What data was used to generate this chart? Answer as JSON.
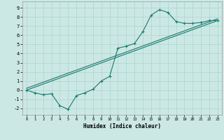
{
  "xlabel": "Humidex (Indice chaleur)",
  "bg_color": "#cce8e4",
  "grid_color": "#aad4cc",
  "line_color": "#1a7a6e",
  "xlim": [
    -0.5,
    23.5
  ],
  "ylim": [
    -2.7,
    9.7
  ],
  "xticks": [
    0,
    1,
    2,
    3,
    4,
    5,
    6,
    7,
    8,
    9,
    10,
    11,
    12,
    13,
    14,
    15,
    16,
    17,
    18,
    19,
    20,
    21,
    22,
    23
  ],
  "yticks": [
    -2,
    -1,
    0,
    1,
    2,
    3,
    4,
    5,
    6,
    7,
    8,
    9
  ],
  "series": [
    [
      0.0,
      0.0
    ],
    [
      1.0,
      -0.3
    ],
    [
      2.0,
      -0.5
    ],
    [
      3.0,
      -0.4
    ],
    [
      4.0,
      -1.7
    ],
    [
      5.0,
      -2.1
    ],
    [
      6.0,
      -0.6
    ],
    [
      7.0,
      -0.3
    ],
    [
      8.0,
      0.1
    ],
    [
      9.0,
      1.0
    ],
    [
      10.0,
      1.5
    ],
    [
      11.0,
      4.6
    ],
    [
      12.0,
      4.8
    ],
    [
      13.0,
      5.1
    ],
    [
      14.0,
      6.4
    ],
    [
      15.0,
      8.2
    ],
    [
      16.0,
      8.8
    ],
    [
      17.0,
      8.5
    ],
    [
      18.0,
      7.5
    ],
    [
      19.0,
      7.3
    ],
    [
      20.0,
      7.3
    ],
    [
      21.0,
      7.4
    ],
    [
      22.0,
      7.6
    ],
    [
      23.0,
      7.6
    ]
  ],
  "line2": [
    [
      0.0,
      0.0
    ],
    [
      23.0,
      7.6
    ]
  ],
  "line3": [
    [
      0.0,
      0.2
    ],
    [
      23.0,
      7.8
    ]
  ]
}
